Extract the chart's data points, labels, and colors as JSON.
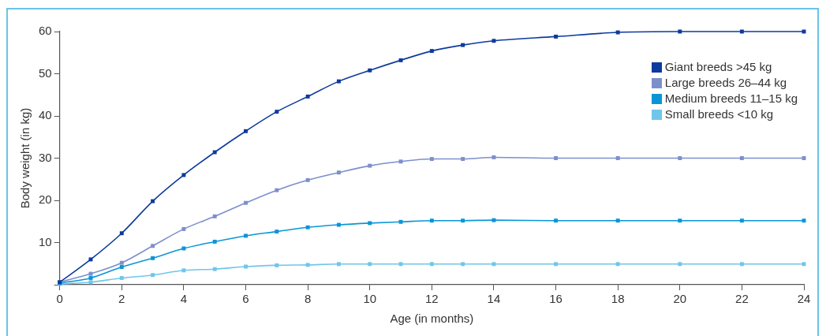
{
  "chart_data": {
    "type": "line",
    "xlabel": "Age (in months)",
    "ylabel": "Body weight (in kg)",
    "x": [
      0,
      1,
      2,
      3,
      4,
      5,
      6,
      7,
      8,
      9,
      10,
      11,
      12,
      13,
      14,
      16,
      18,
      20,
      22,
      24
    ],
    "series": [
      {
        "name": "Giant breeds >45 kg",
        "color": "#0d3a9e",
        "values": [
          0.6,
          6,
          12.2,
          19.8,
          26,
          31.4,
          36.4,
          41,
          44.6,
          48.2,
          50.8,
          53.2,
          55.4,
          56.8,
          57.8,
          58.8,
          59.8,
          60,
          60,
          60
        ]
      },
      {
        "name": "Large breeds 26–44 kg",
        "color": "#7d8fcb",
        "values": [
          0.6,
          2.6,
          5.2,
          9.2,
          13.2,
          16.2,
          19.4,
          22.4,
          24.8,
          26.6,
          28.2,
          29.2,
          29.8,
          29.8,
          30.2,
          30,
          30,
          30,
          30,
          30
        ]
      },
      {
        "name": "Medium breeds 11–15 kg",
        "color": "#0a96d6",
        "values": [
          0.4,
          1.6,
          4.2,
          6.3,
          8.6,
          10.2,
          11.6,
          12.6,
          13.6,
          14.2,
          14.6,
          14.9,
          15.2,
          15.2,
          15.3,
          15.2,
          15.2,
          15.2,
          15.2,
          15.2
        ]
      },
      {
        "name": "Small breeds <10 kg",
        "color": "#6fc6ea",
        "values": [
          0.2,
          0.6,
          1.6,
          2.3,
          3.4,
          3.7,
          4.3,
          4.6,
          4.7,
          4.9,
          4.9,
          4.9,
          4.9,
          4.9,
          4.9,
          4.9,
          4.9,
          4.9,
          4.9,
          4.9
        ]
      }
    ],
    "xlim": [
      0,
      24
    ],
    "xticks": [
      0,
      2,
      4,
      6,
      8,
      10,
      12,
      14,
      16,
      18,
      20,
      22,
      24
    ],
    "ylim": [
      0,
      60
    ],
    "yticks": [
      {
        "value": 0,
        "label": null
      },
      10,
      20,
      30,
      40,
      50,
      60
    ],
    "grid": false,
    "legend": "top right",
    "marker": "square",
    "line_style": "solid"
  }
}
